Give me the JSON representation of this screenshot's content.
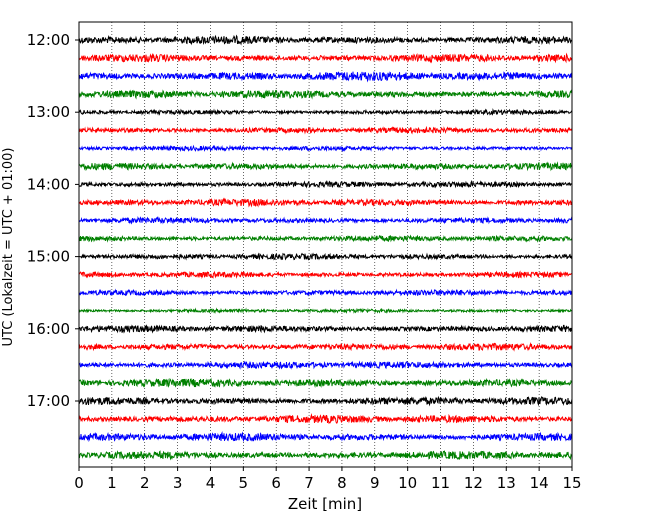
{
  "chart_data": {
    "type": "line",
    "xlabel": "Zeit  [min]",
    "ylabel": "UTC (Lokalzeit = UTC + 01:00)",
    "xlim": [
      0,
      15
    ],
    "x_ticks": [
      0,
      1,
      2,
      3,
      4,
      5,
      6,
      7,
      8,
      9,
      10,
      11,
      12,
      13,
      14,
      15
    ],
    "y_tick_labels": [
      "12:00",
      "13:00",
      "14:00",
      "15:00",
      "16:00",
      "17:00"
    ],
    "grid": "vertical dotted at each minute",
    "trace_colors": [
      "#000000",
      "#ff0000",
      "#0000ff",
      "#008000"
    ],
    "series": [
      {
        "start": "12:00",
        "color": "#000000",
        "amplitude": 3.5
      },
      {
        "start": "12:15",
        "color": "#ff0000",
        "amplitude": 3.5
      },
      {
        "start": "12:30",
        "color": "#0000ff",
        "amplitude": 4
      },
      {
        "start": "12:45",
        "color": "#008000",
        "amplitude": 3.5
      },
      {
        "start": "13:00",
        "color": "#000000",
        "amplitude": 2
      },
      {
        "start": "13:15",
        "color": "#ff0000",
        "amplitude": 2.5
      },
      {
        "start": "13:30",
        "color": "#0000ff",
        "amplitude": 2
      },
      {
        "start": "13:45",
        "color": "#008000",
        "amplitude": 3
      },
      {
        "start": "14:00",
        "color": "#000000",
        "amplitude": 2.5
      },
      {
        "start": "14:15",
        "color": "#ff0000",
        "amplitude": 3
      },
      {
        "start": "14:30",
        "color": "#0000ff",
        "amplitude": 2.5
      },
      {
        "start": "14:45",
        "color": "#008000",
        "amplitude": 2.5
      },
      {
        "start": "15:00",
        "color": "#000000",
        "amplitude": 2.5
      },
      {
        "start": "15:15",
        "color": "#ff0000",
        "amplitude": 2.5
      },
      {
        "start": "15:30",
        "color": "#0000ff",
        "amplitude": 2.5
      },
      {
        "start": "15:45",
        "color": "#008000",
        "amplitude": 1.5
      },
      {
        "start": "16:00",
        "color": "#000000",
        "amplitude": 3
      },
      {
        "start": "16:15",
        "color": "#ff0000",
        "amplitude": 3
      },
      {
        "start": "16:30",
        "color": "#0000ff",
        "amplitude": 3
      },
      {
        "start": "16:45",
        "color": "#008000",
        "amplitude": 3.5
      },
      {
        "start": "17:00",
        "color": "#000000",
        "amplitude": 3.5
      },
      {
        "start": "17:15",
        "color": "#ff0000",
        "amplitude": 3.5
      },
      {
        "start": "17:30",
        "color": "#0000ff",
        "amplitude": 3.5
      },
      {
        "start": "17:45",
        "color": "#008000",
        "amplitude": 3.5
      }
    ]
  }
}
